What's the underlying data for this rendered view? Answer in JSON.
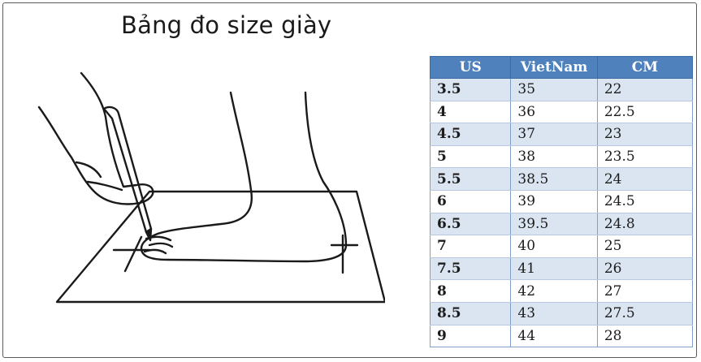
{
  "title": "Bảng đo size giày",
  "table": {
    "headers": [
      "US",
      "VietNam",
      "CM"
    ],
    "rows": [
      {
        "us": "3.5",
        "vn": "35",
        "cm": "22"
      },
      {
        "us": "4",
        "vn": "36",
        "cm": "22.5"
      },
      {
        "us": "4.5",
        "vn": "37",
        "cm": "23"
      },
      {
        "us": "5",
        "vn": "38",
        "cm": "23.5"
      },
      {
        "us": "5.5",
        "vn": "38.5",
        "cm": "24"
      },
      {
        "us": "6",
        "vn": "39",
        "cm": "24.5"
      },
      {
        "us": "6.5",
        "vn": "39.5",
        "cm": "24.8"
      },
      {
        "us": "7",
        "vn": "40",
        "cm": "25"
      },
      {
        "us": "7.5",
        "vn": "41",
        "cm": "26"
      },
      {
        "us": "8",
        "vn": "42",
        "cm": "27"
      },
      {
        "us": "8.5",
        "vn": "43",
        "cm": "27.5"
      },
      {
        "us": "9",
        "vn": "44",
        "cm": "28"
      }
    ]
  },
  "colors": {
    "header_bg": "#4f81bd",
    "stripe_bg": "#dbe5f1"
  },
  "illustration": {
    "icon": "foot-measuring-illustration"
  }
}
